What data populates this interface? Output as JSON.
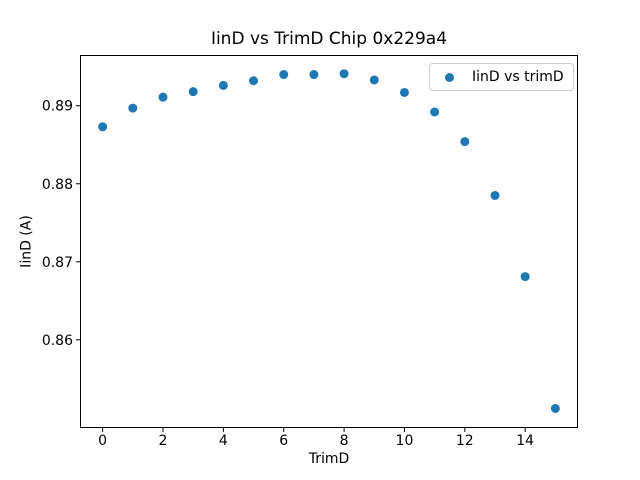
{
  "figure": {
    "background": "#ffffff",
    "text_color": "#000000"
  },
  "chart_data": {
    "type": "scatter",
    "title": "IinD vs TrimD Chip 0x229a4",
    "xlabel": "TrimD",
    "ylabel": "IinD (A)",
    "legend": {
      "label": "IinD vs trimD",
      "position": "upper right"
    },
    "marker_color": "#1f77b4",
    "axis_color": "#000000",
    "grid": false,
    "x": [
      0,
      1,
      2,
      3,
      4,
      5,
      6,
      7,
      8,
      9,
      10,
      11,
      12,
      13,
      14,
      15
    ],
    "y": [
      0.8873,
      0.8897,
      0.8911,
      0.8918,
      0.8926,
      0.8932,
      0.894,
      0.894,
      0.8941,
      0.8933,
      0.8917,
      0.8892,
      0.8854,
      0.8785,
      0.8681,
      0.8512
    ],
    "xlim": [
      -0.75,
      15.75
    ],
    "ylim": [
      0.8487,
      0.8965
    ],
    "x_ticks": [
      0,
      2,
      4,
      6,
      8,
      10,
      12,
      14
    ],
    "y_ticks": [
      0.86,
      0.87,
      0.88,
      0.89
    ]
  }
}
